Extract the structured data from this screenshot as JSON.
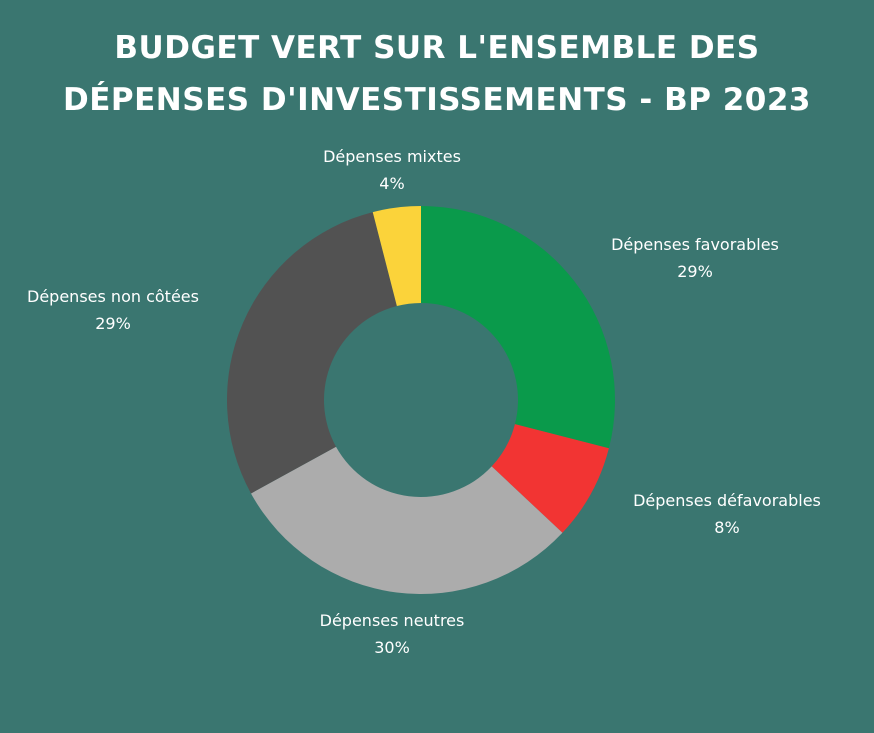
{
  "title": {
    "line1": "BUDGET VERT SUR L'ENSEMBLE DES",
    "line2": "DÉPENSES D'INVESTISSEMENTS - BP 2023"
  },
  "colors": {
    "background": "#3a7670",
    "favorables": "#0a9a4b",
    "defavorables": "#f23433",
    "neutres": "#acacac",
    "non_cotees": "#525252",
    "mixtes": "#fbd33a"
  },
  "chart_data": {
    "type": "pie",
    "variant": "donut",
    "title": "BUDGET VERT SUR L'ENSEMBLE DES DÉPENSES D'INVESTISSEMENTS - BP 2023",
    "legend": "none (direct labels)",
    "slices": [
      {
        "label": "Dépenses favorables",
        "value": 29,
        "display": "29%",
        "color": "#0a9a4b"
      },
      {
        "label": "Dépenses défavorables",
        "value": 8,
        "display": "8%",
        "color": "#f23433"
      },
      {
        "label": "Dépenses neutres",
        "value": 30,
        "display": "30%",
        "color": "#acacac"
      },
      {
        "label": "Dépenses non côtées",
        "value": 29,
        "display": "29%",
        "color": "#525252"
      },
      {
        "label": "Dépenses mixtes",
        "value": 4,
        "display": "4%",
        "color": "#fbd33a"
      }
    ]
  }
}
